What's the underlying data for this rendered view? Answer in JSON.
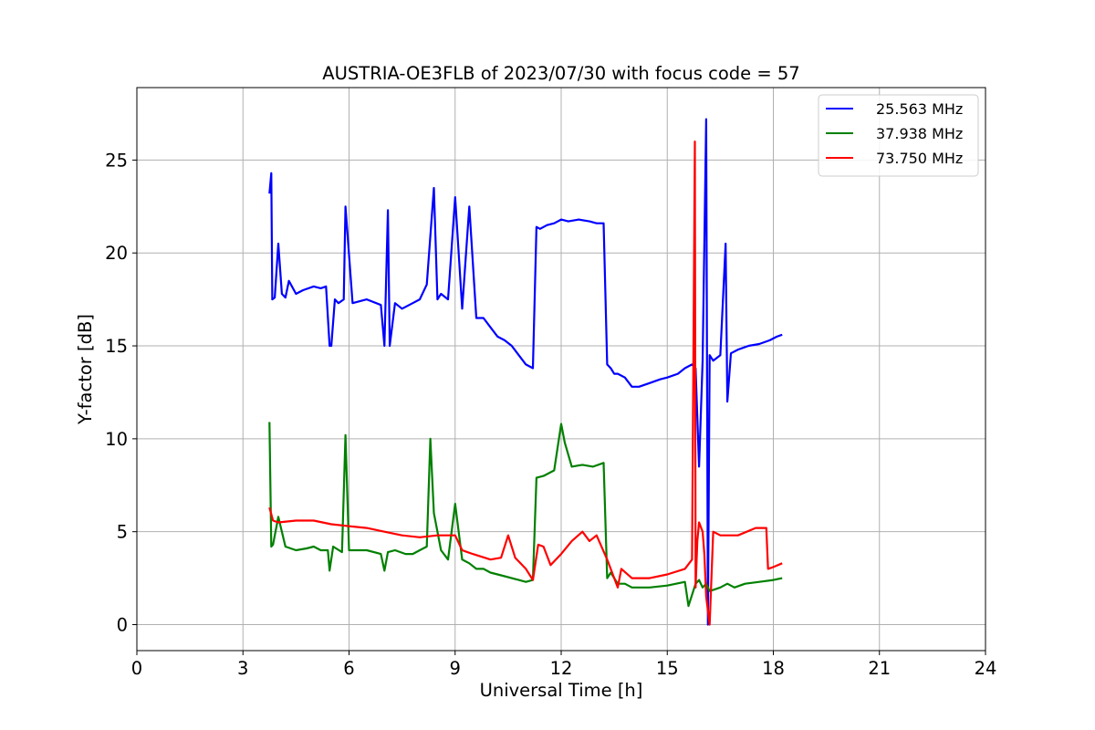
{
  "chart_data": {
    "type": "line",
    "title": "AUSTRIA-OE3FLB of 2023/07/30 with focus code = 57",
    "xlabel": "Universal Time [h]",
    "ylabel": "Y-factor [dB]",
    "xlim": [
      0,
      24
    ],
    "ylim": [
      -1.4,
      28.9
    ],
    "xticks": [
      0,
      3,
      6,
      9,
      12,
      15,
      18,
      21,
      24
    ],
    "yticks": [
      0,
      5,
      10,
      15,
      20,
      25
    ],
    "grid": true,
    "legend_position": "top-right",
    "series": [
      {
        "name": "25.563 MHz",
        "color": "#0000ff",
        "x": [
          3.75,
          3.8,
          3.83,
          3.9,
          4.0,
          4.1,
          4.2,
          4.3,
          4.5,
          4.7,
          5.0,
          5.2,
          5.35,
          5.45,
          5.5,
          5.6,
          5.7,
          5.85,
          5.9,
          6.1,
          6.5,
          6.9,
          7.0,
          7.1,
          7.15,
          7.3,
          7.5,
          7.8,
          8.0,
          8.2,
          8.4,
          8.5,
          8.6,
          8.8,
          9.0,
          9.2,
          9.4,
          9.6,
          9.8,
          10.0,
          10.2,
          10.4,
          10.6,
          10.8,
          11.0,
          11.2,
          11.3,
          11.4,
          11.6,
          11.8,
          12.0,
          12.2,
          12.5,
          12.8,
          13.0,
          13.2,
          13.3,
          13.4,
          13.5,
          13.6,
          13.8,
          14.0,
          14.2,
          14.5,
          14.8,
          15.0,
          15.3,
          15.5,
          15.7,
          15.8,
          15.9,
          16.0,
          16.1,
          16.15,
          16.2,
          16.3,
          16.5,
          16.65,
          16.7,
          16.8,
          17.0,
          17.3,
          17.6,
          17.9,
          18.1,
          18.25
        ],
        "y": [
          23.2,
          24.3,
          17.5,
          17.6,
          20.5,
          17.8,
          17.6,
          18.5,
          17.8,
          18.0,
          18.2,
          18.1,
          18.2,
          15.0,
          15.0,
          17.5,
          17.3,
          17.5,
          22.5,
          17.3,
          17.5,
          17.2,
          15.0,
          22.3,
          15.0,
          17.3,
          17.0,
          17.3,
          17.5,
          18.3,
          23.5,
          17.5,
          17.8,
          17.5,
          23.0,
          17.0,
          22.5,
          16.5,
          16.5,
          16.0,
          15.5,
          15.3,
          15.0,
          14.5,
          14.0,
          13.8,
          21.4,
          21.3,
          21.5,
          21.6,
          21.8,
          21.7,
          21.8,
          21.7,
          21.6,
          21.6,
          14.0,
          13.8,
          13.5,
          13.5,
          13.3,
          12.8,
          12.8,
          13.0,
          13.2,
          13.3,
          13.5,
          13.8,
          14.0,
          13.8,
          8.5,
          14.2,
          27.2,
          0.0,
          14.5,
          14.2,
          14.5,
          20.5,
          12.0,
          14.6,
          14.8,
          15.0,
          15.1,
          15.3,
          15.5,
          15.6
        ]
      },
      {
        "name": "37.938 MHz",
        "color": "#008000",
        "x": [
          3.75,
          3.8,
          3.85,
          4.0,
          4.2,
          4.5,
          4.8,
          5.0,
          5.2,
          5.4,
          5.45,
          5.55,
          5.8,
          5.9,
          6.0,
          6.5,
          6.9,
          7.0,
          7.1,
          7.3,
          7.6,
          7.8,
          8.0,
          8.2,
          8.3,
          8.4,
          8.6,
          8.8,
          9.0,
          9.2,
          9.4,
          9.6,
          9.8,
          10.0,
          10.2,
          10.4,
          10.6,
          10.8,
          11.0,
          11.2,
          11.3,
          11.5,
          11.8,
          12.0,
          12.1,
          12.3,
          12.6,
          12.9,
          13.2,
          13.3,
          13.4,
          13.6,
          13.8,
          14.0,
          14.5,
          15.0,
          15.5,
          15.6,
          15.8,
          15.9,
          16.0,
          16.1,
          16.2,
          16.5,
          16.7,
          16.9,
          17.2,
          17.6,
          18.0,
          18.25
        ],
        "y": [
          10.9,
          4.2,
          4.3,
          5.8,
          4.2,
          4.0,
          4.1,
          4.2,
          4.0,
          4.0,
          2.9,
          4.2,
          3.9,
          10.2,
          4.0,
          4.0,
          3.8,
          2.9,
          3.9,
          4.0,
          3.8,
          3.8,
          4.0,
          4.2,
          10.0,
          6.0,
          4.0,
          3.5,
          6.5,
          3.5,
          3.3,
          3.0,
          3.0,
          2.8,
          2.7,
          2.6,
          2.5,
          2.4,
          2.3,
          2.4,
          7.9,
          8.0,
          8.3,
          10.8,
          9.8,
          8.5,
          8.6,
          8.5,
          8.7,
          2.5,
          2.8,
          2.2,
          2.2,
          2.0,
          2.0,
          2.1,
          2.3,
          1.0,
          2.2,
          2.4,
          2.0,
          2.2,
          1.8,
          2.0,
          2.2,
          2.0,
          2.2,
          2.3,
          2.4,
          2.5
        ]
      },
      {
        "name": "73.750 MHz",
        "color": "#ff0000",
        "x": [
          3.75,
          3.85,
          4.0,
          4.5,
          5.0,
          5.5,
          6.0,
          6.5,
          7.0,
          7.5,
          8.0,
          8.5,
          9.0,
          9.2,
          9.5,
          10.0,
          10.3,
          10.5,
          10.7,
          11.0,
          11.2,
          11.35,
          11.5,
          11.7,
          12.0,
          12.3,
          12.6,
          12.8,
          13.0,
          13.3,
          13.6,
          13.7,
          14.0,
          14.5,
          15.0,
          15.5,
          15.7,
          15.78,
          15.8,
          15.85,
          15.9,
          16.0,
          16.05,
          16.1,
          16.2,
          16.3,
          16.5,
          17.0,
          17.5,
          17.8,
          17.85,
          18.0,
          18.25
        ],
        "y": [
          6.3,
          5.6,
          5.5,
          5.6,
          5.6,
          5.4,
          5.3,
          5.2,
          5.0,
          4.8,
          4.7,
          4.8,
          4.8,
          4.0,
          3.8,
          3.5,
          3.6,
          4.8,
          3.6,
          3.0,
          2.4,
          4.3,
          4.2,
          3.2,
          3.8,
          4.5,
          5.0,
          4.5,
          4.8,
          3.5,
          2.0,
          3.0,
          2.5,
          2.5,
          2.7,
          3.0,
          3.5,
          26.0,
          2.0,
          4.5,
          5.5,
          5.0,
          3.8,
          1.5,
          0.0,
          5.0,
          4.8,
          4.8,
          5.2,
          5.2,
          3.0,
          3.1,
          3.3
        ]
      }
    ]
  }
}
